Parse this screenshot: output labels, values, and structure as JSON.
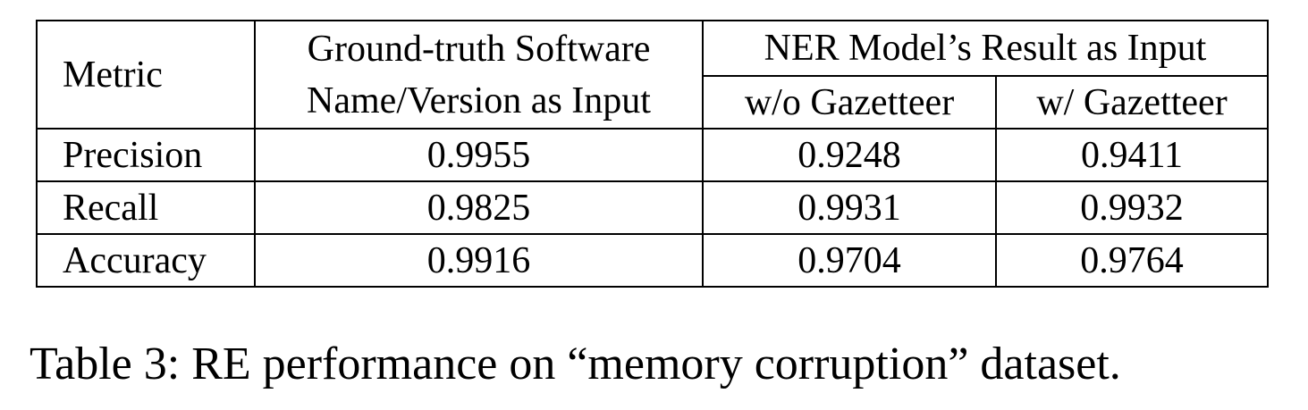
{
  "table": {
    "header": {
      "metric": "Metric",
      "ground_truth_line1": "Ground-truth Software",
      "ground_truth_line2": "Name/Version as Input",
      "ner_group": "NER Model’s Result as Input",
      "without_gazetteer": "w/o Gazetteer",
      "with_gazetteer": "w/ Gazetteer"
    },
    "rows": [
      {
        "metric": "Precision",
        "ground_truth": "0.9955",
        "without_gazetteer": "0.9248",
        "with_gazetteer": "0.9411"
      },
      {
        "metric": "Recall",
        "ground_truth": "0.9825",
        "without_gazetteer": "0.9931",
        "with_gazetteer": "0.9932"
      },
      {
        "metric": "Accuracy",
        "ground_truth": "0.9916",
        "without_gazetteer": "0.9704",
        "with_gazetteer": "0.9764"
      }
    ]
  },
  "caption": "Table 3: RE performance on “memory corruption” dataset."
}
